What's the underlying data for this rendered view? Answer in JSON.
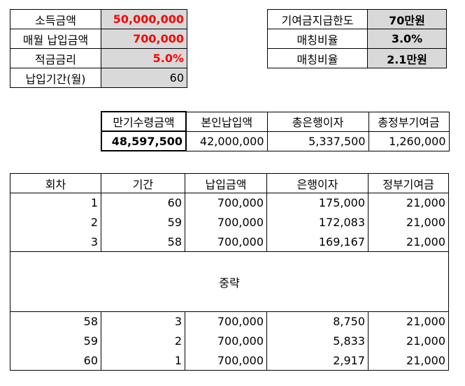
{
  "input": {
    "rows": [
      {
        "label": "소득금액",
        "value": "50,000,000"
      },
      {
        "label": "매월 납입금액",
        "value": "700,000"
      },
      {
        "label": "적금금리",
        "value": "5.0%"
      },
      {
        "label": "납입기간(월)",
        "value": "60"
      }
    ]
  },
  "limits": {
    "rows": [
      {
        "label": "기여금지급한도",
        "value": "70만원"
      },
      {
        "label": "매칭비율",
        "value": "3.0%"
      },
      {
        "label": "매칭비율",
        "value": "2.1만원"
      }
    ]
  },
  "summary": {
    "headers": [
      "만기수령금액",
      "본인납입액",
      "총은행이자",
      "총정부기여금"
    ],
    "values": [
      "48,597,500",
      "42,000,000",
      "5,337,500",
      "1,260,000"
    ]
  },
  "schedule": {
    "headers": [
      "회차",
      "기간",
      "납입금액",
      "은행이자",
      "정부기여금"
    ],
    "top_rows": [
      [
        "1",
        "60",
        "700,000",
        "175,000",
        "21,000"
      ],
      [
        "2",
        "59",
        "700,000",
        "172,083",
        "21,000"
      ],
      [
        "3",
        "58",
        "700,000",
        "169,167",
        "21,000"
      ]
    ],
    "omitted_label": "중략",
    "bottom_rows": [
      [
        "58",
        "3",
        "700,000",
        "8,750",
        "21,000"
      ],
      [
        "59",
        "2",
        "700,000",
        "5,833",
        "21,000"
      ],
      [
        "60",
        "1",
        "700,000",
        "2,917",
        "21,000"
      ]
    ]
  }
}
